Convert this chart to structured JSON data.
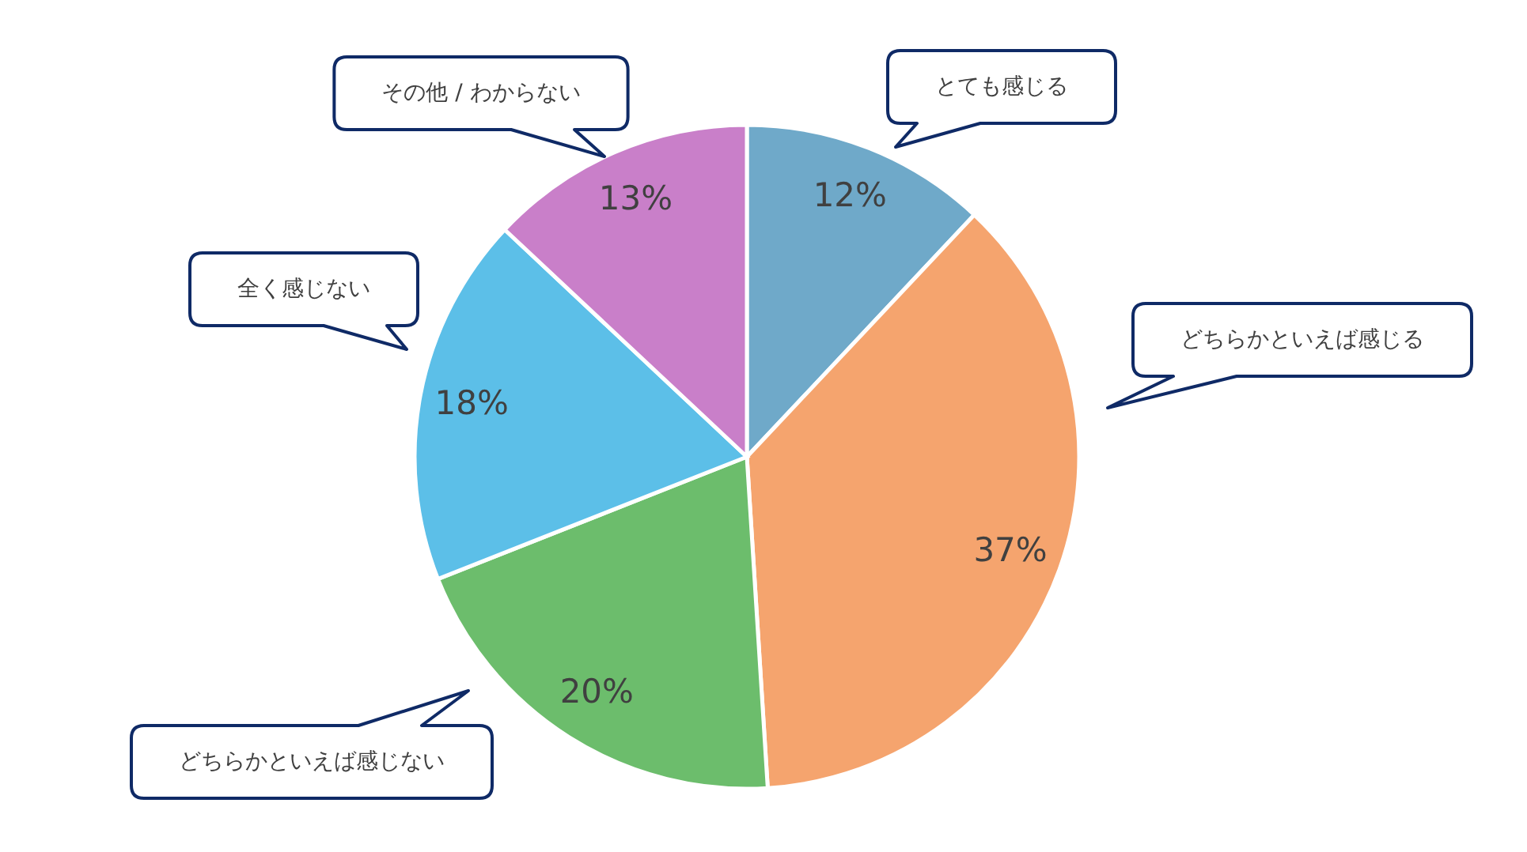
{
  "chart_data": {
    "type": "pie",
    "categories": [
      "とても感じる",
      "どちらかといえば感じる",
      "どちらかといえば感じない",
      "全く感じない",
      "その他 / わからない"
    ],
    "values": [
      12,
      37,
      20,
      18,
      13
    ],
    "colors": [
      "#6fa9c9",
      "#f5a46e",
      "#6cbd6c",
      "#5cbfe8",
      "#c97fc9"
    ],
    "value_labels": [
      "12%",
      "37%",
      "20%",
      "18%",
      "13%"
    ]
  }
}
